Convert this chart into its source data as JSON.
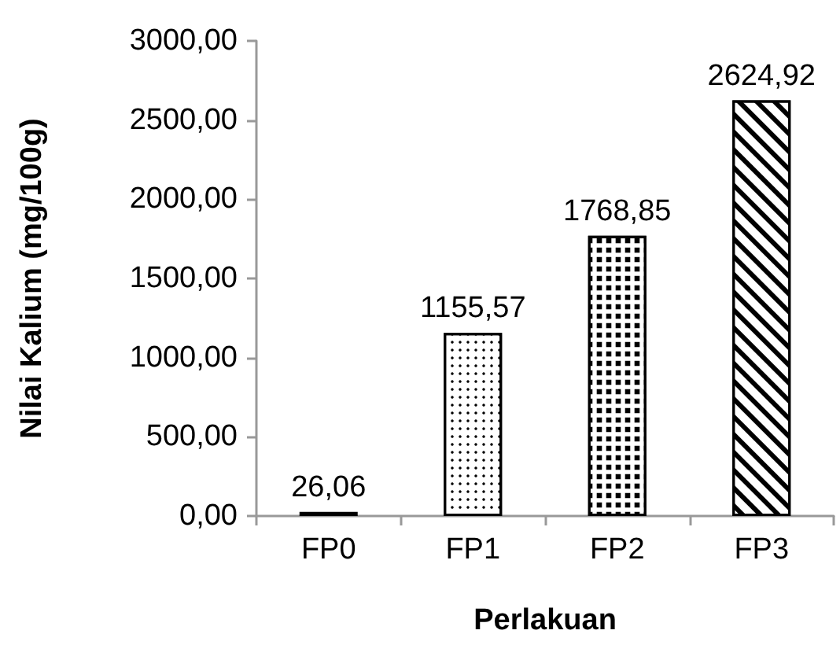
{
  "chart_data": {
    "type": "bar",
    "xlabel": "Perlakuan",
    "ylabel": "Nilai Kalium (mg/100g)",
    "categories": [
      "FP0",
      "FP1",
      "FP2",
      "FP3"
    ],
    "values": [
      26.06,
      1155.57,
      1768.85,
      2624.92
    ],
    "colors": [
      "#404040",
      "#ffffff",
      "#ffffff",
      "#ffffff"
    ],
    "value_labels": [
      "26,06",
      "1155,57",
      "1768,85",
      "2624,92"
    ],
    "ylim": [
      0,
      3000
    ],
    "yticks": [
      {
        "value": 0,
        "label": "0,00"
      },
      {
        "value": 500,
        "label": "500,00"
      },
      {
        "value": 1000,
        "label": "1000,00"
      },
      {
        "value": 1500,
        "label": "1500,00"
      },
      {
        "value": 2000,
        "label": "2000,00"
      },
      {
        "value": 2500,
        "label": "2500,00"
      },
      {
        "value": 3000,
        "label": "3000,00"
      }
    ]
  }
}
